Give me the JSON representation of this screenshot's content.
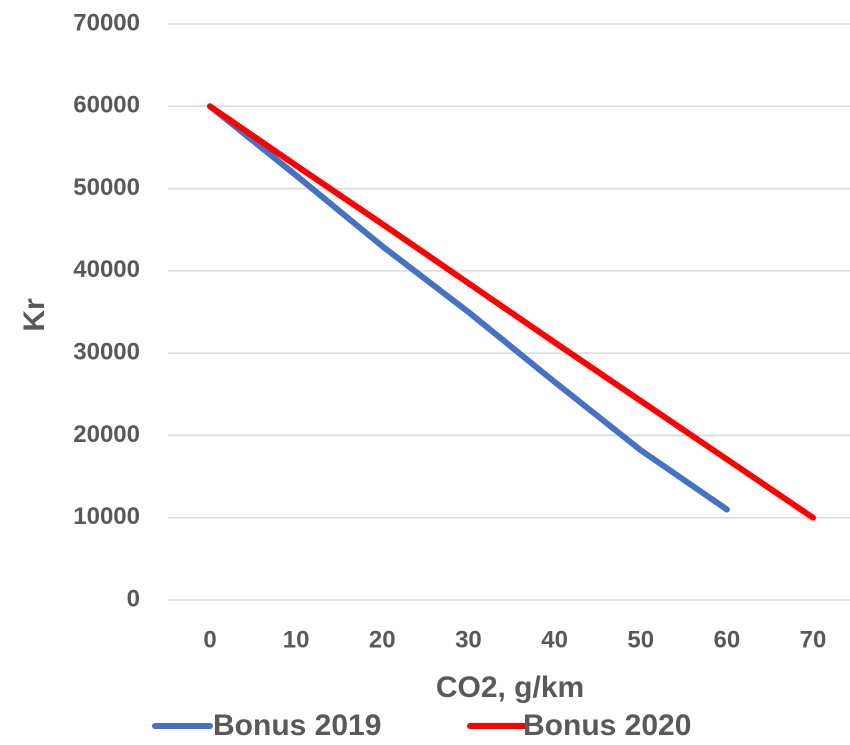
{
  "chart_data": {
    "type": "line",
    "title": "",
    "xlabel": "CO2, g/km",
    "ylabel": "Kr",
    "x": [
      0,
      10,
      20,
      30,
      40,
      50,
      60,
      70
    ],
    "x_ticks": [
      "0",
      "10",
      "20",
      "30",
      "40",
      "50",
      "60",
      "70"
    ],
    "y_ticks": [
      "0",
      "10000",
      "20000",
      "30000",
      "40000",
      "50000",
      "60000",
      "70000"
    ],
    "xlim": [
      0,
      70
    ],
    "ylim": [
      0,
      70000
    ],
    "grid": "horizontal",
    "legend_position": "bottom",
    "series": [
      {
        "name": "Bonus 2019",
        "color": "#4472C4",
        "points": [
          [
            0,
            60000
          ],
          [
            10,
            51600
          ],
          [
            20,
            43000
          ],
          [
            30,
            35000
          ],
          [
            40,
            26500
          ],
          [
            50,
            18200
          ],
          [
            60,
            11000
          ]
        ]
      },
      {
        "name": "Bonus 2020",
        "color": "#FF0000",
        "points": [
          [
            0,
            60000
          ],
          [
            10,
            52800
          ],
          [
            20,
            45700
          ],
          [
            30,
            38500
          ],
          [
            40,
            31300
          ],
          [
            50,
            24200
          ],
          [
            60,
            17100
          ],
          [
            70,
            10000
          ]
        ]
      }
    ]
  }
}
